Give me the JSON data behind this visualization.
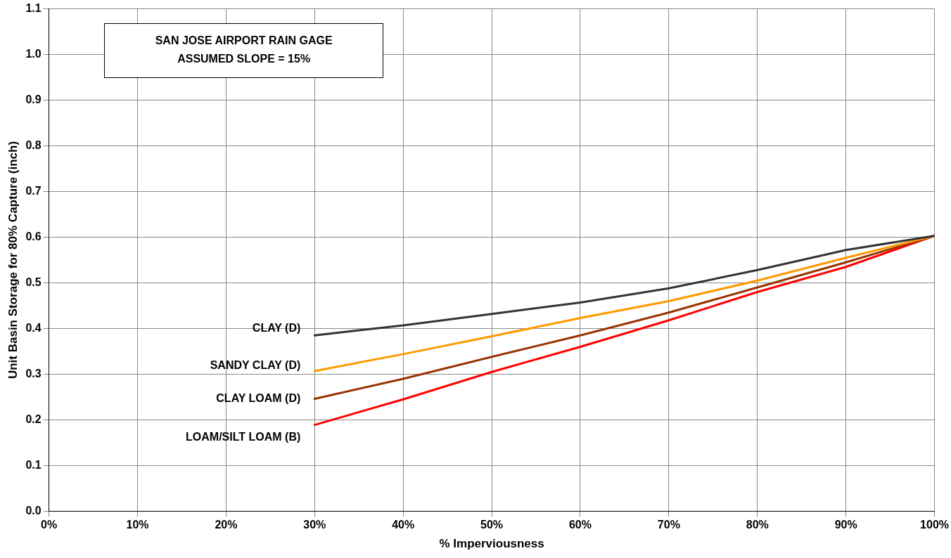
{
  "chart_data": {
    "type": "line",
    "xlabel": "% Imperviousness",
    "ylabel": "Unit Basin Storage for 80% Capture (inch)",
    "annotations": [
      "SAN JOSE AIRPORT RAIN GAGE\nASSUMED SLOPE = 15%"
    ],
    "x": [
      0.3,
      0.4,
      0.5,
      0.6,
      0.7,
      0.8,
      0.9,
      1.0
    ],
    "series": [
      {
        "name": "CLAY (D)",
        "color": "#333333",
        "values": [
          0.385,
          0.407,
          0.432,
          0.457,
          0.488,
          0.528,
          0.572,
          0.603
        ]
      },
      {
        "name": "SANDY CLAY (D)",
        "color": "#ff9900",
        "values": [
          0.307,
          0.344,
          0.383,
          0.423,
          0.46,
          0.505,
          0.555,
          0.603
        ]
      },
      {
        "name": "CLAY LOAM (D)",
        "color": "#993300",
        "values": [
          0.246,
          0.29,
          0.338,
          0.385,
          0.435,
          0.49,
          0.545,
          0.603
        ]
      },
      {
        "name": "LOAM/SILT LOAM (B)",
        "color": "#ff0000",
        "values": [
          0.189,
          0.245,
          0.305,
          0.36,
          0.418,
          0.48,
          0.535,
          0.603
        ]
      }
    ],
    "xlim": [
      0,
      1
    ],
    "xticks": [
      {
        "value": 0,
        "label": "0%"
      },
      {
        "value": 0.1,
        "label": "10%"
      },
      {
        "value": 0.2,
        "label": "20%"
      },
      {
        "value": 0.3,
        "label": "30%"
      },
      {
        "value": 0.4,
        "label": "40%"
      },
      {
        "value": 0.5,
        "label": "50%"
      },
      {
        "value": 0.6,
        "label": "60%"
      },
      {
        "value": 0.7,
        "label": "70%"
      },
      {
        "value": 0.8,
        "label": "80%"
      },
      {
        "value": 0.9,
        "label": "90%"
      },
      {
        "value": 1,
        "label": "100%"
      }
    ],
    "ylim": [
      0,
      1.1
    ],
    "yticks": [
      {
        "value": 0,
        "label": "0.0"
      },
      {
        "value": 0.1,
        "label": "0.1"
      },
      {
        "value": 0.2,
        "label": "0.2"
      },
      {
        "value": 0.3,
        "label": "0.3"
      },
      {
        "value": 0.4,
        "label": "0.4"
      },
      {
        "value": 0.5,
        "label": "0.5"
      },
      {
        "value": 0.6,
        "label": "0.6"
      },
      {
        "value": 0.7,
        "label": "0.7"
      },
      {
        "value": 0.8,
        "label": "0.8"
      },
      {
        "value": 0.9,
        "label": "0.9"
      },
      {
        "value": 1,
        "label": "1.0"
      },
      {
        "value": 1.1,
        "label": "1.1"
      }
    ],
    "grid": true,
    "legend": false,
    "marker": "none",
    "line_style": "solid"
  }
}
